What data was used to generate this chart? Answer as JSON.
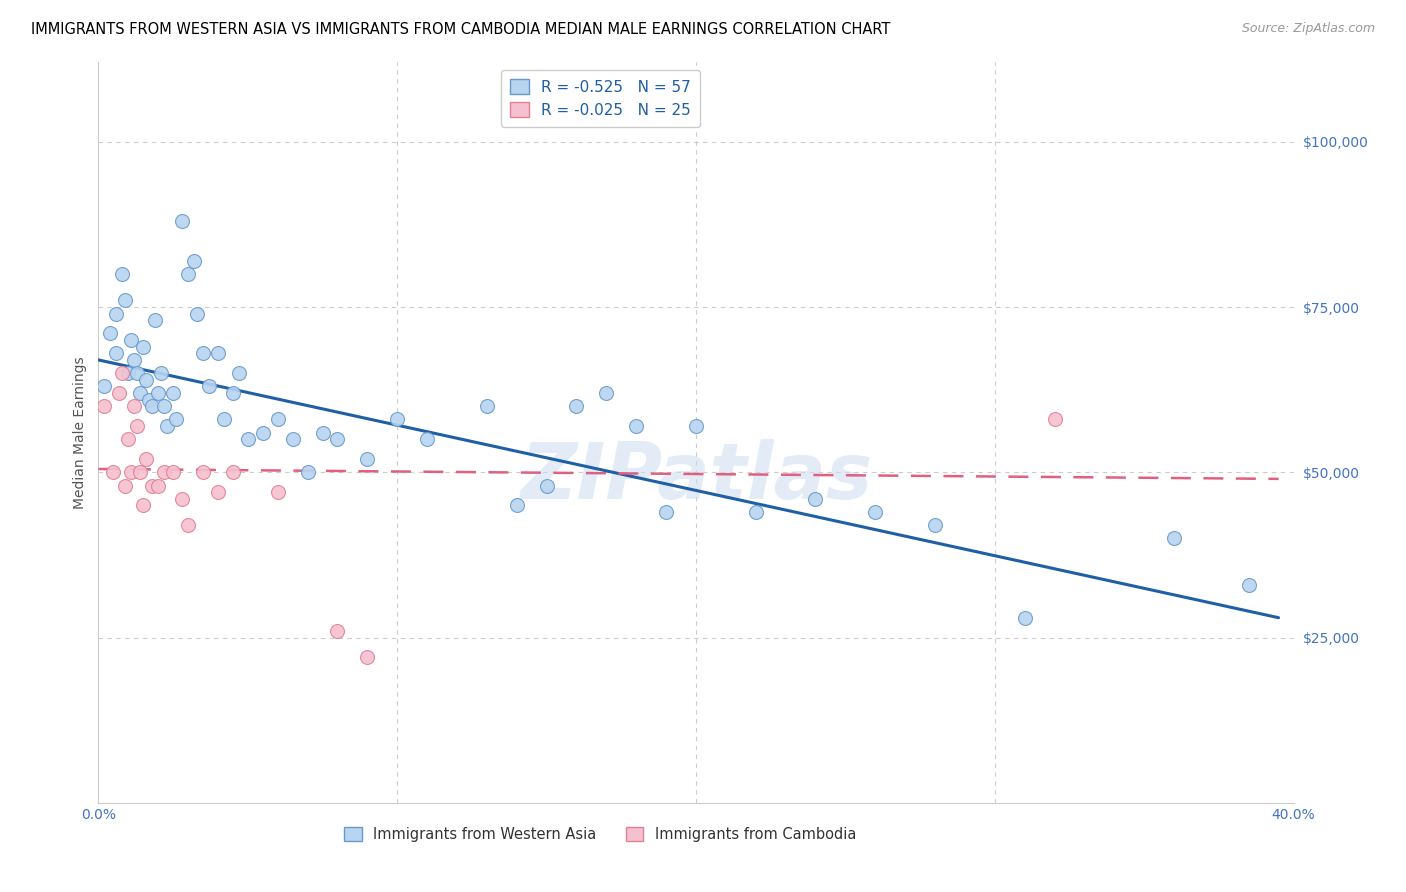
{
  "title": "IMMIGRANTS FROM WESTERN ASIA VS IMMIGRANTS FROM CAMBODIA MEDIAN MALE EARNINGS CORRELATION CHART",
  "source": "Source: ZipAtlas.com",
  "ylabel": "Median Male Earnings",
  "xlim": [
    0,
    0.4
  ],
  "ylim": [
    0,
    112000
  ],
  "xticks": [
    0.0,
    0.05,
    0.1,
    0.15,
    0.2,
    0.25,
    0.3,
    0.35,
    0.4
  ],
  "xtick_labels": [
    "0.0%",
    "",
    "",
    "",
    "",
    "",
    "",
    "",
    "40.0%"
  ],
  "ytick_positions": [
    25000,
    50000,
    75000,
    100000
  ],
  "ytick_labels": [
    "$25,000",
    "$50,000",
    "$75,000",
    "$100,000"
  ],
  "legend_label1": "Immigrants from Western Asia",
  "legend_label2": "Immigrants from Cambodia",
  "legend_r1": "R = -0.525",
  "legend_n1": "N = 57",
  "legend_r2": "R = -0.025",
  "legend_n2": "N = 25",
  "western_asia_x": [
    0.002,
    0.004,
    0.006,
    0.006,
    0.008,
    0.009,
    0.01,
    0.011,
    0.012,
    0.013,
    0.014,
    0.015,
    0.016,
    0.017,
    0.018,
    0.019,
    0.02,
    0.021,
    0.022,
    0.023,
    0.025,
    0.026,
    0.028,
    0.03,
    0.032,
    0.033,
    0.035,
    0.037,
    0.04,
    0.042,
    0.045,
    0.047,
    0.05,
    0.055,
    0.06,
    0.065,
    0.07,
    0.075,
    0.08,
    0.09,
    0.1,
    0.11,
    0.13,
    0.14,
    0.15,
    0.16,
    0.17,
    0.18,
    0.19,
    0.2,
    0.22,
    0.24,
    0.26,
    0.28,
    0.31,
    0.36,
    0.385
  ],
  "western_asia_y": [
    63000,
    71000,
    68000,
    74000,
    80000,
    76000,
    65000,
    70000,
    67000,
    65000,
    62000,
    69000,
    64000,
    61000,
    60000,
    73000,
    62000,
    65000,
    60000,
    57000,
    62000,
    58000,
    88000,
    80000,
    82000,
    74000,
    68000,
    63000,
    68000,
    58000,
    62000,
    65000,
    55000,
    56000,
    58000,
    55000,
    50000,
    56000,
    55000,
    52000,
    58000,
    55000,
    60000,
    45000,
    48000,
    60000,
    62000,
    57000,
    44000,
    57000,
    44000,
    46000,
    44000,
    42000,
    28000,
    40000,
    33000
  ],
  "cambodia_x": [
    0.002,
    0.005,
    0.007,
    0.008,
    0.009,
    0.01,
    0.011,
    0.012,
    0.013,
    0.014,
    0.015,
    0.016,
    0.018,
    0.02,
    0.022,
    0.025,
    0.028,
    0.03,
    0.035,
    0.04,
    0.045,
    0.06,
    0.08,
    0.09,
    0.32
  ],
  "cambodia_y": [
    60000,
    50000,
    62000,
    65000,
    48000,
    55000,
    50000,
    60000,
    57000,
    50000,
    45000,
    52000,
    48000,
    48000,
    50000,
    50000,
    46000,
    42000,
    50000,
    47000,
    50000,
    47000,
    26000,
    22000,
    58000
  ],
  "blue_line_x": [
    0.0,
    0.395
  ],
  "blue_line_y": [
    67000,
    28000
  ],
  "pink_line_x": [
    0.0,
    0.395
  ],
  "pink_line_y": [
    50500,
    49000
  ],
  "scatter_size": 100,
  "blue_scatter_color": "#b8d4f0",
  "blue_scatter_edge": "#6699cc",
  "pink_scatter_color": "#f5c0d0",
  "pink_scatter_edge": "#e08090",
  "blue_line_color": "#1f5fa6",
  "pink_line_color": "#e06080",
  "grid_color": "#cccccc",
  "grid_dash": [
    4,
    4
  ],
  "watermark": "ZIPatlas",
  "title_fontsize": 10.5,
  "tick_color": "#4472c4",
  "ylabel_color": "#555555",
  "source_color": "#999999"
}
